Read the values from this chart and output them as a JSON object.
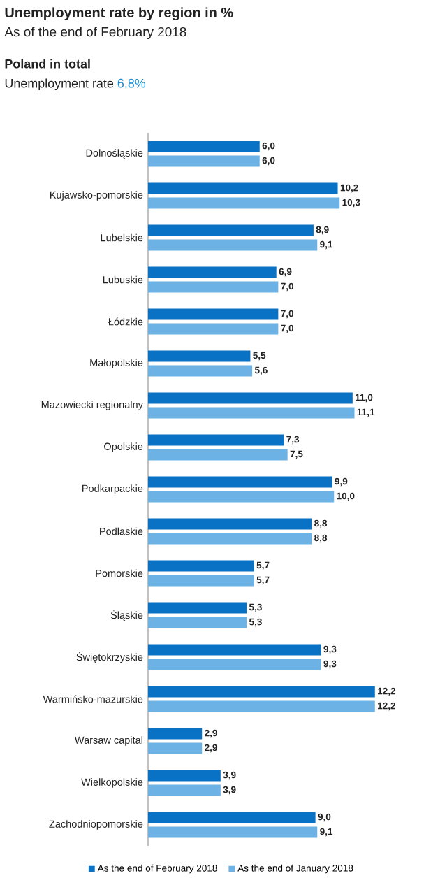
{
  "chart_data": {
    "type": "bar",
    "orientation": "horizontal",
    "title": "Unemployment rate by region in %",
    "subtitle": "As of the end of February  2018",
    "annotations": [
      "Poland in total",
      "Unemployment rate",
      "6,8%"
    ],
    "categories": [
      "Dolnośląskie",
      "Kujawsko-pomorskie",
      "Lubelskie",
      "Lubuskie",
      "Łódzkie",
      "Małopolskie",
      "Mazowiecki regionalny",
      "Opolskie",
      "Podkarpackie",
      "Podlaskie",
      "Pomorskie",
      "Śląskie",
      "Świętokrzyskie",
      "Warmińsko-mazurskie",
      "Warsaw capital",
      "Wielkopolskie",
      "Zachodniopomorskie"
    ],
    "series": [
      {
        "name": "As the end of February 2018",
        "color": "#0a72c4",
        "values": [
          6.0,
          10.2,
          8.9,
          6.9,
          7.0,
          5.5,
          11.0,
          7.3,
          9.9,
          8.8,
          5.7,
          5.3,
          9.3,
          12.2,
          2.9,
          3.9,
          9.0
        ],
        "value_labels": [
          "6,0",
          "10,2",
          "8,9",
          "6,9",
          "7,0",
          "5,5",
          "11,0",
          "7,3",
          "9,9",
          "8,8",
          "5,7",
          "5,3",
          "9,3",
          "12,2",
          "2,9",
          "3,9",
          "9,0"
        ]
      },
      {
        "name": "As the end of January 2018",
        "color": "#6cb2e4",
        "values": [
          6.0,
          10.3,
          9.1,
          7.0,
          7.0,
          5.6,
          11.1,
          7.5,
          10.0,
          8.8,
          5.7,
          5.3,
          9.3,
          12.2,
          2.9,
          3.9,
          9.1
        ],
        "value_labels": [
          "6,0",
          "10,3",
          "9,1",
          "7,0",
          "7,0",
          "5,6",
          "11,1",
          "7,5",
          "10,0",
          "8,8",
          "5,7",
          "5,3",
          "9,3",
          "12,2",
          "2,9",
          "3,9",
          "9,1"
        ]
      }
    ],
    "legend": "bottom"
  }
}
